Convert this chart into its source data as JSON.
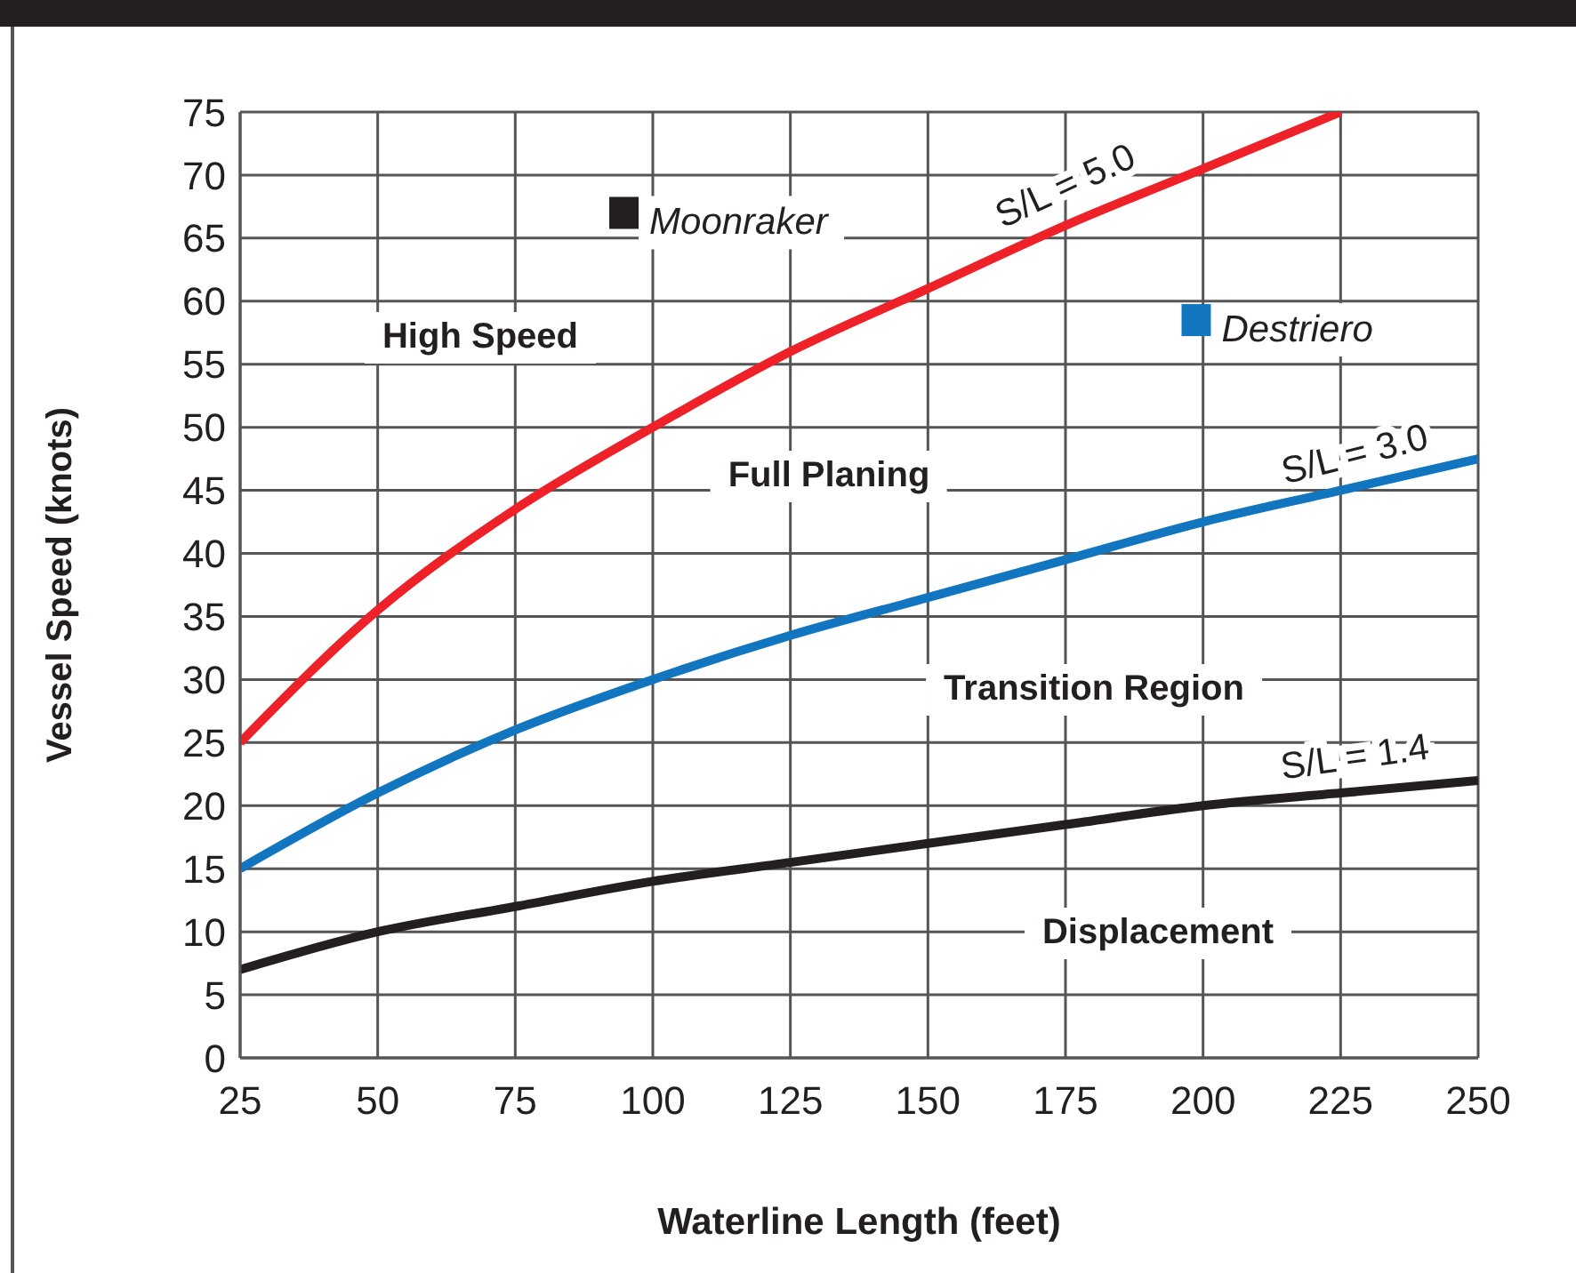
{
  "chart_data": {
    "type": "line",
    "xlabel": "Waterline Length (feet)",
    "ylabel": "Vessel Speed (knots)",
    "xlim": [
      25,
      250
    ],
    "xticks": [
      25,
      50,
      75,
      100,
      125,
      150,
      175,
      200,
      225,
      250
    ],
    "ylim": [
      0,
      75
    ],
    "yticks": [
      0,
      5,
      10,
      15,
      20,
      25,
      30,
      35,
      40,
      45,
      50,
      55,
      60,
      65,
      70,
      75
    ],
    "grid": true,
    "legend": false,
    "marker": "none",
    "line_style": "solid",
    "series": [
      {
        "name": "S/L = 5.0",
        "color": "#ee2128",
        "x": [
          25,
          50,
          75,
          100,
          125,
          150,
          175,
          200,
          225
        ],
        "values": [
          25,
          35.5,
          43.5,
          50,
          56,
          61,
          66,
          70.5,
          75
        ]
      },
      {
        "name": "S/L = 3.0",
        "color": "#1175c0",
        "x": [
          25,
          50,
          75,
          100,
          125,
          150,
          175,
          200,
          225,
          250
        ],
        "values": [
          15,
          21,
          26,
          30,
          33.5,
          36.5,
          39.5,
          42.5,
          45,
          47.5
        ]
      },
      {
        "name": "S/L = 1.4",
        "color": "#231f20",
        "x": [
          25,
          50,
          75,
          100,
          125,
          150,
          175,
          200,
          225,
          250
        ],
        "values": [
          7,
          10,
          12,
          14,
          15.5,
          17,
          18.5,
          20,
          21,
          22
        ]
      },
      {
        "type": "scatter",
        "name": "Moonraker",
        "color": "#231f20",
        "marker": "square",
        "x": [
          95
        ],
        "values": [
          67
        ]
      },
      {
        "type": "scatter",
        "name": "Destriero",
        "color": "#1175c0",
        "marker": "square",
        "x": [
          199
        ],
        "values": [
          58.5
        ]
      }
    ],
    "annotations": [
      "High Speed",
      "Full Planing",
      "Transition Region",
      "Displacement"
    ]
  }
}
